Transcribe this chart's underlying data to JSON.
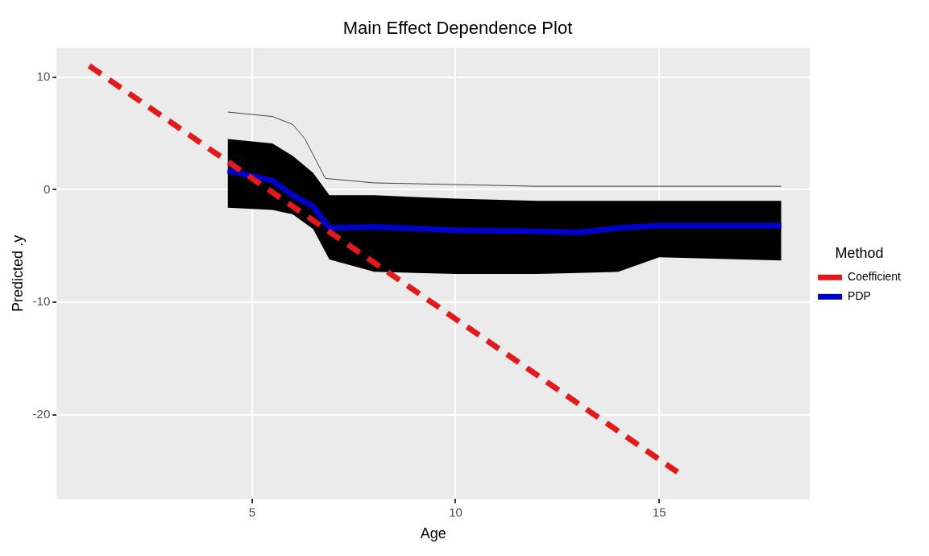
{
  "chart_data": {
    "type": "line",
    "title": "Main Effect Dependence Plot",
    "xlabel": "Age",
    "ylabel": "Predicted .y",
    "legend_title": "Method",
    "legend": "right",
    "grid": true,
    "marker": "none",
    "xlim": [
      0.2,
      18.7
    ],
    "xticks": [
      5,
      10,
      15
    ],
    "ylim": [
      -27.5,
      12.6
    ],
    "yticks": [
      -20,
      -10,
      0,
      10
    ],
    "series": [
      {
        "name": "Coefficient",
        "color": "#e31a1c",
        "line_style": "dashed",
        "x": [
          1,
          15.45
        ],
        "values": [
          11,
          -25.1
        ]
      },
      {
        "name": "PDP",
        "color": "#0000cc",
        "x": [
          4.4,
          5.5,
          6.0,
          6.5,
          6.9,
          8,
          10,
          12,
          13,
          14,
          15,
          18
        ],
        "values": [
          1.7,
          0.8,
          -0.5,
          -1.5,
          -3.4,
          -3.3,
          -3.6,
          -3.7,
          -3.8,
          -3.4,
          -3.2,
          -3.2
        ],
        "lower": [
          -1.6,
          -1.8,
          -2.2,
          -3.5,
          -6.2,
          -7.3,
          -7.5,
          -7.5,
          -7.4,
          -7.3,
          -6.0,
          -6.3
        ],
        "upper": [
          4.5,
          4.1,
          3.0,
          1.5,
          -0.5,
          -0.5,
          -0.8,
          -1.0,
          -1.0,
          -1.0,
          -1.0,
          -1.0
        ]
      },
      {
        "color": "#444444",
        "x": [
          4.4,
          5.5,
          6.0,
          6.3,
          6.8,
          8,
          12,
          18
        ],
        "values": [
          6.9,
          6.5,
          5.8,
          4.5,
          1.0,
          0.6,
          0.3,
          0.3
        ]
      }
    ]
  }
}
